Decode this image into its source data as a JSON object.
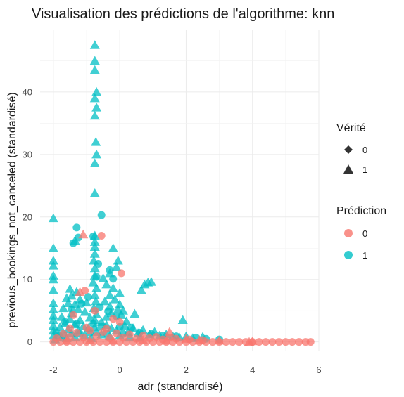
{
  "chart_data": {
    "type": "scatter",
    "title": "Visualisation des prédictions de l'algorithme: knn",
    "xlabel": "adr (standardisé)",
    "ylabel": "previous_bookings_not_canceled (standardisé)",
    "xlim": [
      -2.4,
      6.0
    ],
    "ylim": [
      -1.5,
      50.0
    ],
    "xticks": [
      -2,
      0,
      2,
      4,
      6
    ],
    "yticks": [
      0,
      10,
      20,
      30,
      40
    ],
    "grid": true,
    "legends": [
      {
        "title": "Vérité",
        "entries": [
          {
            "label": "0",
            "shape": "circle"
          },
          {
            "label": "1",
            "shape": "triangle"
          }
        ]
      },
      {
        "title": "Prédiction",
        "entries": [
          {
            "label": "0",
            "color": "#F8766D"
          },
          {
            "label": "1",
            "color": "#00BFC4"
          }
        ]
      }
    ],
    "colors": {
      "prediction_0": "#F8766D",
      "prediction_1": "#00BFC4"
    },
    "series": [
      {
        "verite": "1",
        "prediction": "1",
        "points": [
          [
            -0.75,
            47.5
          ],
          [
            -0.75,
            45
          ],
          [
            -0.75,
            43.5
          ],
          [
            -0.7,
            40
          ],
          [
            -0.75,
            39
          ],
          [
            -0.7,
            37.5
          ],
          [
            -0.75,
            36.2
          ],
          [
            -0.72,
            32
          ],
          [
            -0.7,
            30
          ],
          [
            -0.75,
            28.6
          ],
          [
            -0.75,
            23.8
          ],
          [
            -2.0,
            19.8
          ],
          [
            -2.0,
            15
          ],
          [
            -2.0,
            13
          ],
          [
            -2.0,
            12.2
          ],
          [
            -2.0,
            10.6
          ],
          [
            -2.0,
            10
          ],
          [
            -2.0,
            8.3
          ],
          [
            -2.0,
            6.2
          ],
          [
            -2.0,
            5.2
          ],
          [
            -2.0,
            4.2
          ],
          [
            -2.0,
            3.5
          ],
          [
            -2.0,
            2.6
          ],
          [
            -2.0,
            1.8
          ],
          [
            -2.0,
            1.0
          ],
          [
            -1.95,
            0.4
          ],
          [
            -1.85,
            1.0
          ],
          [
            -1.75,
            0.7
          ],
          [
            -1.35,
            16.2
          ],
          [
            -0.75,
            17
          ],
          [
            -0.75,
            16
          ],
          [
            -0.75,
            15.2
          ],
          [
            -0.75,
            14.1
          ],
          [
            -0.78,
            13
          ],
          [
            -0.75,
            11.8
          ],
          [
            -0.75,
            10.6
          ],
          [
            -0.8,
            9.5
          ],
          [
            -0.7,
            8.6
          ],
          [
            -0.75,
            7.5
          ],
          [
            -0.72,
            6.5
          ],
          [
            -0.78,
            5.4
          ],
          [
            -0.7,
            4.4
          ],
          [
            -0.75,
            3.5
          ],
          [
            -0.75,
            2.4
          ],
          [
            -0.7,
            1.6
          ],
          [
            -0.2,
            15
          ],
          [
            -0.05,
            13
          ],
          [
            -0.1,
            12
          ],
          [
            -0.3,
            11
          ],
          [
            -0.5,
            10.2
          ],
          [
            -0.4,
            9.2
          ],
          [
            -0.2,
            8.6
          ],
          [
            0.0,
            7.8
          ],
          [
            -0.3,
            7.5
          ],
          [
            -0.15,
            6.8
          ],
          [
            -0.45,
            6.5
          ],
          [
            0.0,
            6
          ],
          [
            -0.3,
            5.7
          ],
          [
            -0.05,
            5.2
          ],
          [
            0.1,
            5.0
          ],
          [
            -0.25,
            4.6
          ],
          [
            0.05,
            4.3
          ],
          [
            -0.4,
            4.0
          ],
          [
            -1.5,
            8.5
          ],
          [
            -1.3,
            8.0
          ],
          [
            -1.45,
            7.4
          ],
          [
            -1.6,
            7.0
          ],
          [
            -1.2,
            6.8
          ],
          [
            -1.55,
            6.2
          ],
          [
            -1.35,
            6.0
          ],
          [
            -1.0,
            6.3
          ],
          [
            -1.7,
            5.4
          ],
          [
            -1.25,
            5.2
          ],
          [
            -1.45,
            4.6
          ],
          [
            -1.05,
            4.8
          ],
          [
            -1.75,
            4.0
          ],
          [
            -1.5,
            3.7
          ],
          [
            -1.2,
            3.5
          ],
          [
            -0.9,
            3.9
          ],
          [
            -1.65,
            3.0
          ],
          [
            -1.35,
            2.8
          ],
          [
            -1.1,
            2.5
          ],
          [
            -0.95,
            2.2
          ],
          [
            -1.55,
            2.0
          ],
          [
            -1.25,
            1.8
          ],
          [
            -1.8,
            2.4
          ],
          [
            -1.45,
            1.4
          ],
          [
            -0.55,
            3.2
          ],
          [
            -0.4,
            2.7
          ],
          [
            -0.25,
            2.2
          ],
          [
            -0.1,
            1.8
          ],
          [
            0.15,
            2.6
          ],
          [
            0.25,
            1.6
          ],
          [
            0.4,
            2.2
          ],
          [
            0.55,
            1.4
          ],
          [
            0.7,
            1.9
          ],
          [
            0.9,
            1.2
          ],
          [
            1.05,
            1.6
          ],
          [
            1.2,
            1.0
          ],
          [
            1.4,
            1.2
          ],
          [
            1.6,
            0.9
          ],
          [
            1.8,
            0.7
          ],
          [
            2.0,
            0.9
          ],
          [
            2.2,
            0.6
          ],
          [
            2.5,
            0.8
          ],
          [
            1.9,
            3.5
          ],
          [
            0.45,
            4.5
          ],
          [
            0.2,
            3.3
          ],
          [
            0.85,
            9.5
          ],
          [
            0.95,
            9.6
          ],
          [
            0.75,
            9.2
          ],
          [
            0.65,
            8.3
          ],
          [
            -0.55,
            1.2
          ],
          [
            -0.3,
            0.9
          ],
          [
            0.0,
            1.0
          ],
          [
            0.3,
            0.8
          ],
          [
            0.6,
            0.7
          ],
          [
            -1.05,
            1.0
          ],
          [
            -1.35,
            0.8
          ],
          [
            -1.6,
            0.6
          ],
          [
            -0.85,
            0.6
          ]
        ]
      },
      {
        "verite": "0",
        "prediction": "1",
        "points": [
          [
            -0.55,
            20.3
          ],
          [
            -1.3,
            18.3
          ],
          [
            -1.4,
            15.8
          ],
          [
            -1.25,
            16.7
          ],
          [
            -0.8,
            16.9
          ],
          [
            -0.65,
            12.5
          ],
          [
            -0.3,
            11.5
          ],
          [
            -0.7,
            10.4
          ],
          [
            -0.2,
            10.1
          ],
          [
            -0.95,
            7.2
          ],
          [
            -1.15,
            6.1
          ],
          [
            -1.45,
            5.2
          ],
          [
            -0.6,
            5.6
          ],
          [
            -0.35,
            4.9
          ],
          [
            -0.1,
            4.1
          ],
          [
            -1.65,
            3.2
          ],
          [
            -1.3,
            2.9
          ],
          [
            -0.8,
            2.9
          ],
          [
            -0.55,
            2.5
          ],
          [
            0.0,
            2.4
          ],
          [
            0.35,
            2.3
          ],
          [
            0.6,
            1.5
          ],
          [
            0.95,
            1.3
          ],
          [
            1.3,
            1.0
          ],
          [
            1.7,
            0.9
          ],
          [
            2.3,
            0.7
          ],
          [
            2.6,
            0.5
          ],
          [
            3.0,
            0.4
          ],
          [
            -1.9,
            1.5
          ],
          [
            -1.7,
            1.2
          ],
          [
            -1.2,
            1.3
          ],
          [
            -0.9,
            1.5
          ],
          [
            -0.4,
            1.4
          ],
          [
            0.1,
            1.3
          ]
        ]
      },
      {
        "verite": "0",
        "prediction": "0",
        "points": [
          [
            -0.55,
            17.0
          ],
          [
            0.05,
            11.0
          ],
          [
            -1.05,
            8.2
          ],
          [
            -0.75,
            5.0
          ],
          [
            -1.4,
            4.3
          ],
          [
            -0.2,
            3.7
          ],
          [
            0.0,
            3.2
          ],
          [
            -2.0,
            0
          ],
          [
            -1.8,
            0
          ],
          [
            -1.6,
            0
          ],
          [
            -1.4,
            0
          ],
          [
            -1.2,
            0
          ],
          [
            -1.0,
            0
          ],
          [
            -0.8,
            0
          ],
          [
            -0.6,
            0
          ],
          [
            -0.4,
            0
          ],
          [
            -0.2,
            0
          ],
          [
            0.0,
            0
          ],
          [
            0.2,
            0
          ],
          [
            0.4,
            0
          ],
          [
            0.6,
            0
          ],
          [
            0.8,
            0
          ],
          [
            1.0,
            0
          ],
          [
            1.2,
            0
          ],
          [
            1.4,
            0
          ],
          [
            1.6,
            0
          ],
          [
            1.8,
            0
          ],
          [
            2.0,
            0
          ],
          [
            2.2,
            0
          ],
          [
            2.4,
            0
          ],
          [
            2.6,
            0
          ],
          [
            2.8,
            0
          ],
          [
            3.0,
            0
          ],
          [
            3.2,
            0
          ],
          [
            3.4,
            0
          ],
          [
            3.6,
            0
          ],
          [
            3.8,
            0
          ],
          [
            4.0,
            0
          ],
          [
            4.2,
            0
          ],
          [
            4.4,
            0
          ],
          [
            4.6,
            0
          ],
          [
            4.8,
            0
          ],
          [
            5.0,
            0
          ],
          [
            5.2,
            0
          ],
          [
            5.4,
            0
          ],
          [
            5.6,
            0
          ],
          [
            5.75,
            0
          ],
          [
            -1.9,
            0.6
          ],
          [
            -1.5,
            0.8
          ],
          [
            -1.1,
            0.7
          ],
          [
            -0.7,
            0.9
          ],
          [
            -0.3,
            0.6
          ],
          [
            0.1,
            0.7
          ],
          [
            0.5,
            0.5
          ],
          [
            0.9,
            0.6
          ],
          [
            1.3,
            0.4
          ],
          [
            1.7,
            0.5
          ],
          [
            2.1,
            0.4
          ],
          [
            2.5,
            0.3
          ],
          [
            -1.7,
            1.3
          ],
          [
            -1.3,
            1.5
          ],
          [
            -0.9,
            1.8
          ],
          [
            -0.5,
            1.6
          ],
          [
            -0.1,
            1.4
          ],
          [
            0.3,
            1.2
          ],
          [
            0.7,
            1.0
          ],
          [
            1.1,
            0.8
          ],
          [
            1.5,
            0.7
          ],
          [
            -1.5,
            2.2
          ],
          [
            -1.0,
            2.3
          ],
          [
            -0.4,
            2.1
          ]
        ]
      },
      {
        "verite": "1",
        "prediction": "0",
        "points": [
          [
            -1.1,
            17.2
          ],
          [
            -1.2,
            8.0
          ],
          [
            2.0,
            0.5
          ],
          [
            2.4,
            0.3
          ],
          [
            3.9,
            0
          ],
          [
            4.0,
            0.1
          ],
          [
            -1.6,
            0.2
          ],
          [
            -0.9,
            0.3
          ],
          [
            -0.2,
            0.2
          ],
          [
            0.7,
            0.3
          ],
          [
            1.4,
            0.2
          ],
          [
            3.0,
            0.2
          ],
          [
            1.5,
            1.6
          ]
        ]
      }
    ]
  }
}
